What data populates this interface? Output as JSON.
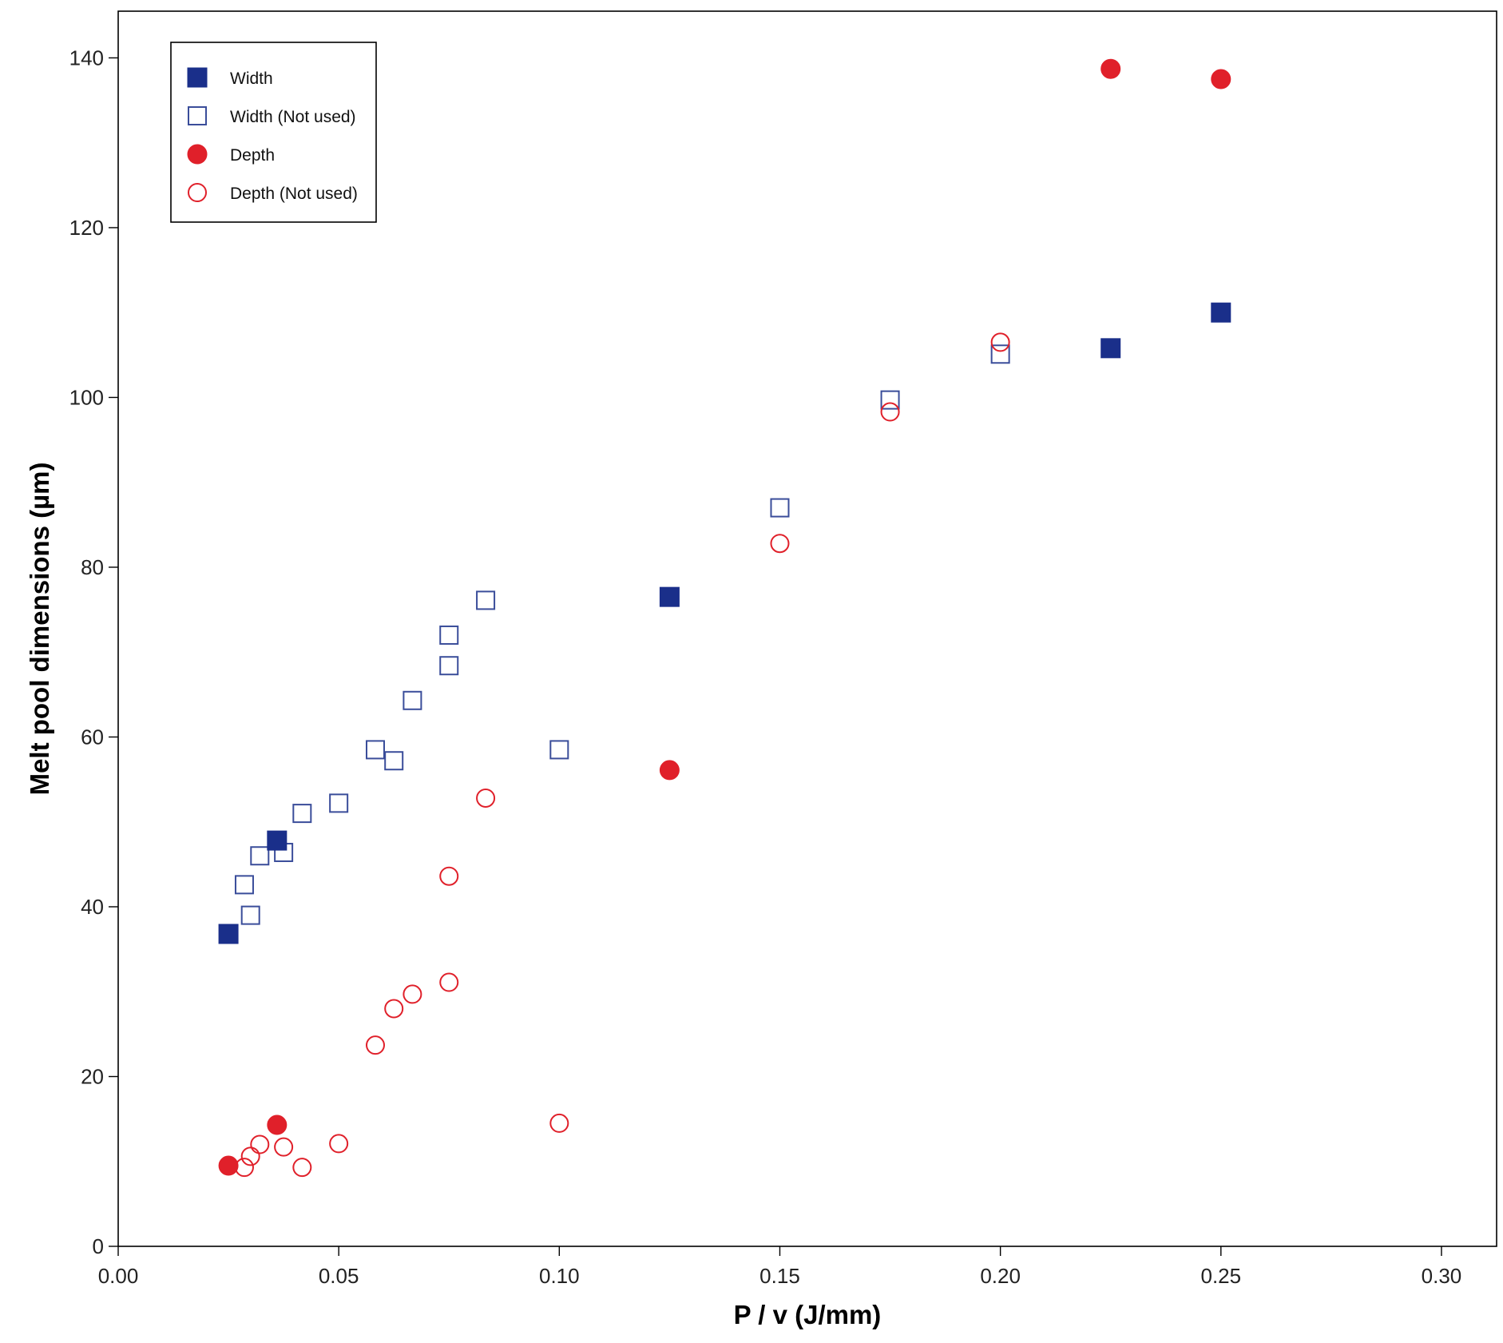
{
  "chart_data": {
    "type": "scatter",
    "title": "",
    "xlabel": "P / v (J/mm)",
    "ylabel": "Melt pool dimensions (µm)",
    "xlim": [
      0.0,
      0.3125
    ],
    "ylim": [
      0,
      145.5
    ],
    "x_ticks": [
      0.0,
      0.05,
      0.1,
      0.15,
      0.2,
      0.25,
      0.3
    ],
    "x_tick_labels": [
      "0.00",
      "0.05",
      "0.10",
      "0.15",
      "0.20",
      "0.25",
      "0.30"
    ],
    "y_ticks": [
      0,
      20,
      40,
      60,
      80,
      100,
      120,
      140
    ],
    "y_tick_labels": [
      "0",
      "20",
      "40",
      "60",
      "80",
      "100",
      "120",
      "140"
    ],
    "grid": false,
    "legend_position": "top-left",
    "series": [
      {
        "name": "Width",
        "marker": "square",
        "filled": true,
        "color": "#1a2f8a",
        "points": [
          {
            "x": 0.025,
            "y": 36.8
          },
          {
            "x": 0.036,
            "y": 47.8
          },
          {
            "x": 0.125,
            "y": 76.5
          },
          {
            "x": 0.225,
            "y": 105.8
          },
          {
            "x": 0.25,
            "y": 110.0
          }
        ]
      },
      {
        "name": "Width (Not used)",
        "marker": "square",
        "filled": false,
        "color": "#3a4d9a",
        "points": [
          {
            "x": 0.0286,
            "y": 42.6
          },
          {
            "x": 0.03,
            "y": 39.0
          },
          {
            "x": 0.0321,
            "y": 46.0
          },
          {
            "x": 0.0375,
            "y": 46.4
          },
          {
            "x": 0.0417,
            "y": 51.0
          },
          {
            "x": 0.05,
            "y": 52.2
          },
          {
            "x": 0.0583,
            "y": 58.5
          },
          {
            "x": 0.0625,
            "y": 57.2
          },
          {
            "x": 0.0667,
            "y": 64.3
          },
          {
            "x": 0.075,
            "y": 68.4
          },
          {
            "x": 0.075,
            "y": 72.0
          },
          {
            "x": 0.0833,
            "y": 76.1
          },
          {
            "x": 0.1,
            "y": 58.5
          },
          {
            "x": 0.15,
            "y": 87.0
          },
          {
            "x": 0.175,
            "y": 99.7
          },
          {
            "x": 0.2,
            "y": 105.1
          }
        ]
      },
      {
        "name": "Depth",
        "marker": "circle",
        "filled": true,
        "color": "#e0202a",
        "points": [
          {
            "x": 0.025,
            "y": 9.5
          },
          {
            "x": 0.036,
            "y": 14.3
          },
          {
            "x": 0.125,
            "y": 56.1
          },
          {
            "x": 0.225,
            "y": 138.7
          },
          {
            "x": 0.25,
            "y": 137.5
          }
        ]
      },
      {
        "name": "Depth (Not used)",
        "marker": "circle",
        "filled": false,
        "color": "#e0202a",
        "points": [
          {
            "x": 0.0286,
            "y": 9.3
          },
          {
            "x": 0.03,
            "y": 10.6
          },
          {
            "x": 0.0321,
            "y": 12.0
          },
          {
            "x": 0.0375,
            "y": 11.7
          },
          {
            "x": 0.0417,
            "y": 9.3
          },
          {
            "x": 0.05,
            "y": 12.1
          },
          {
            "x": 0.0583,
            "y": 23.7
          },
          {
            "x": 0.0625,
            "y": 28.0
          },
          {
            "x": 0.0667,
            "y": 29.7
          },
          {
            "x": 0.075,
            "y": 31.1
          },
          {
            "x": 0.075,
            "y": 43.6
          },
          {
            "x": 0.0833,
            "y": 52.8
          },
          {
            "x": 0.1,
            "y": 14.5
          },
          {
            "x": 0.15,
            "y": 82.8
          },
          {
            "x": 0.175,
            "y": 98.3
          },
          {
            "x": 0.2,
            "y": 106.5
          }
        ]
      }
    ]
  }
}
